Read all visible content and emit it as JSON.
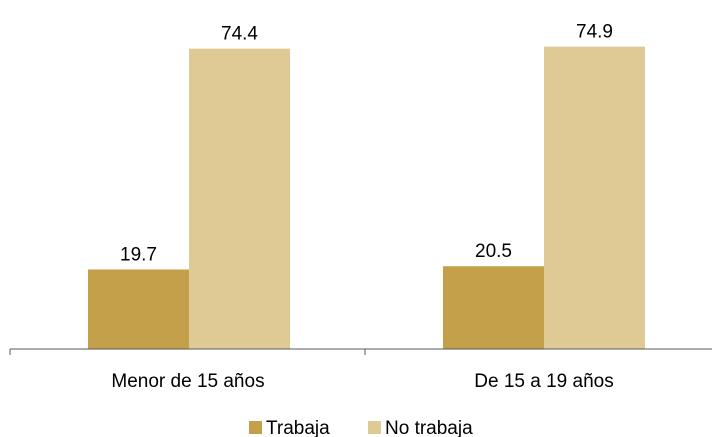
{
  "chart_data": {
    "type": "bar",
    "categories": [
      "Menor de 15 años",
      "De 15 a 19 años"
    ],
    "series": [
      {
        "name": "Trabaja",
        "values": [
          19.7,
          20.5
        ],
        "color": "#C4A04B"
      },
      {
        "name": "No trabaja",
        "values": [
          74.4,
          74.9
        ],
        "color": "#DFC995"
      }
    ],
    "value_labels": {
      "Trabaja": [
        "19.7",
        "20.5"
      ],
      "No trabaja": [
        "74.4",
        "74.9"
      ]
    },
    "ylim": [
      0,
      81
    ],
    "grid": false,
    "legend_position": "bottom-center"
  }
}
